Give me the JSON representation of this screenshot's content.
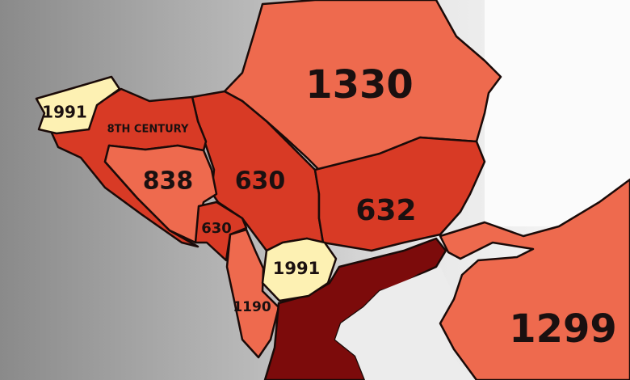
{
  "colors": {
    "early": "#d83a25",
    "medium": "#ee6a4e",
    "greece": "#7c0b0b",
    "recent": "#fdf1b3",
    "sea": "#ececec"
  },
  "regions": [
    {
      "id": "romania",
      "label": "1330"
    },
    {
      "id": "serbia",
      "label": "630"
    },
    {
      "id": "bulgaria",
      "label": "632"
    },
    {
      "id": "slovenia",
      "label": "1991"
    },
    {
      "id": "croatia",
      "label": "8TH CENTURY"
    },
    {
      "id": "bosnia",
      "label": "838"
    },
    {
      "id": "montenegro",
      "label": "630"
    },
    {
      "id": "albania",
      "label": "1190"
    },
    {
      "id": "north-macedonia",
      "label": "1991"
    },
    {
      "id": "turkey",
      "label": "1299"
    }
  ]
}
